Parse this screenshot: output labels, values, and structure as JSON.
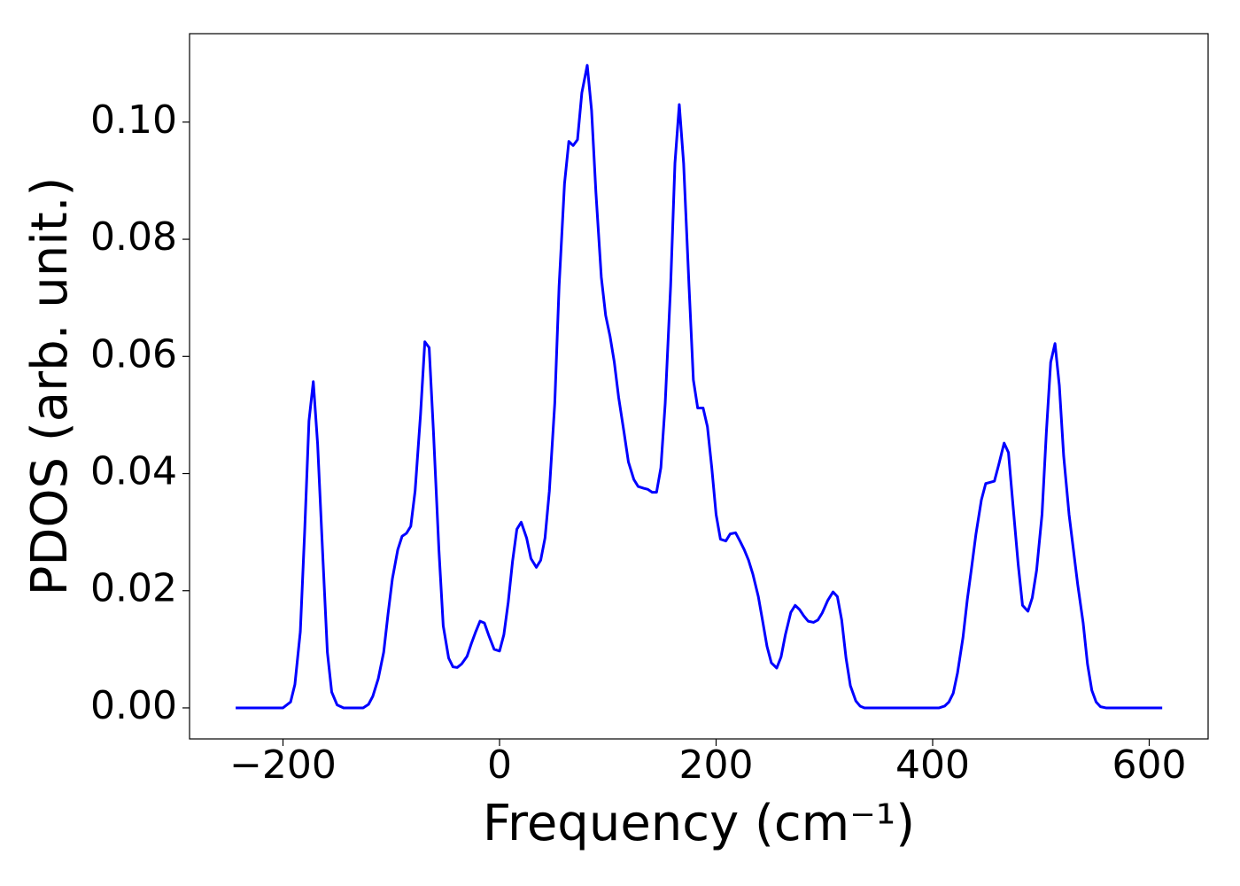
{
  "chart_data": {
    "type": "line",
    "xlabel": "Frequency (cm⁻¹)",
    "ylabel": "PDOS (arb. unit.)",
    "color": "#0000ff",
    "x": [
      -243.7,
      -200,
      -193,
      -189,
      -184,
      -180,
      -176,
      -172,
      -168,
      -163,
      -159,
      -155,
      -150,
      -144,
      -126,
      -121,
      -117,
      -112,
      -107,
      -103,
      -99,
      -94,
      -90,
      -86,
      -82,
      -78,
      -73,
      -69,
      -65,
      -61,
      -56,
      -52,
      -47,
      -43,
      -39,
      -35,
      -30,
      -26,
      -22,
      -18,
      -14,
      -10,
      -5,
      0,
      4,
      8,
      12,
      16,
      20,
      25,
      29,
      34,
      38,
      42,
      46,
      51,
      55,
      60,
      64,
      68,
      72,
      76,
      81,
      85,
      89,
      94,
      98,
      102,
      106,
      110,
      115,
      119,
      124,
      128,
      133,
      137,
      141,
      145,
      149,
      153,
      158,
      162,
      166,
      170,
      175,
      179,
      183,
      188,
      192,
      196,
      200,
      204,
      209,
      213,
      218,
      222,
      226,
      230,
      234,
      239,
      243,
      247,
      251,
      256,
      260,
      264,
      269,
      273,
      277,
      281,
      285,
      290,
      294,
      298,
      303,
      308,
      312,
      316,
      320,
      324,
      329,
      333,
      337,
      406,
      411,
      415,
      419,
      423,
      428,
      432,
      436,
      440,
      445,
      449,
      453,
      457,
      461,
      466,
      470,
      474,
      479,
      483,
      488,
      492,
      496,
      501,
      505,
      509,
      513,
      517,
      521,
      526,
      530,
      534,
      539,
      543,
      547,
      551,
      555,
      560,
      612
    ],
    "values": [
      0,
      0,
      0.001,
      0.004,
      0.013,
      0.03,
      0.049,
      0.0557,
      0.045,
      0.025,
      0.0095,
      0.0027,
      0.0005,
      0,
      0,
      0.0006,
      0.002,
      0.005,
      0.0095,
      0.016,
      0.022,
      0.027,
      0.0293,
      0.0298,
      0.031,
      0.037,
      0.05,
      0.0625,
      0.0615,
      0.047,
      0.027,
      0.014,
      0.0085,
      0.007,
      0.0069,
      0.0075,
      0.0088,
      0.011,
      0.013,
      0.0148,
      0.0145,
      0.0124,
      0.01,
      0.0097,
      0.0125,
      0.018,
      0.025,
      0.0305,
      0.0317,
      0.029,
      0.0255,
      0.024,
      0.0252,
      0.029,
      0.037,
      0.052,
      0.072,
      0.0895,
      0.0967,
      0.096,
      0.097,
      0.105,
      0.1097,
      0.102,
      0.088,
      0.0735,
      0.067,
      0.0635,
      0.059,
      0.053,
      0.047,
      0.042,
      0.039,
      0.0378,
      0.0375,
      0.0373,
      0.0368,
      0.0368,
      0.041,
      0.052,
      0.072,
      0.093,
      0.103,
      0.093,
      0.072,
      0.056,
      0.0512,
      0.0512,
      0.048,
      0.041,
      0.033,
      0.0288,
      0.0285,
      0.0297,
      0.0299,
      0.0285,
      0.027,
      0.0252,
      0.0228,
      0.019,
      0.0148,
      0.0105,
      0.0077,
      0.0068,
      0.0087,
      0.0125,
      0.0163,
      0.0175,
      0.0168,
      0.0157,
      0.0148,
      0.0146,
      0.015,
      0.0162,
      0.0183,
      0.0198,
      0.019,
      0.015,
      0.0085,
      0.0038,
      0.0012,
      0.0003,
      0,
      0,
      0.0003,
      0.001,
      0.0025,
      0.006,
      0.012,
      0.0185,
      0.024,
      0.0297,
      0.0355,
      0.0383,
      0.0385,
      0.0387,
      0.0415,
      0.0452,
      0.0436,
      0.035,
      0.0245,
      0.0175,
      0.0165,
      0.0188,
      0.0235,
      0.033,
      0.047,
      0.059,
      0.0622,
      0.055,
      0.043,
      0.033,
      0.027,
      0.021,
      0.0145,
      0.0075,
      0.003,
      0.001,
      0.0002,
      0,
      0
    ],
    "xlim": [
      -286.3,
      654.4
    ],
    "ylim": [
      -0.0053,
      0.1151
    ],
    "xticks": [
      {
        "value": -200,
        "label": "−200"
      },
      0,
      200,
      400,
      600
    ],
    "yticks": [
      {
        "value": 0,
        "label": "0.00"
      },
      {
        "value": 0.02,
        "label": "0.02"
      },
      {
        "value": 0.04,
        "label": "0.04"
      },
      {
        "value": 0.06,
        "label": "0.06"
      },
      {
        "value": 0.08,
        "label": "0.08"
      },
      {
        "value": 0.1,
        "label": "0.10"
      }
    ],
    "grid": false
  }
}
